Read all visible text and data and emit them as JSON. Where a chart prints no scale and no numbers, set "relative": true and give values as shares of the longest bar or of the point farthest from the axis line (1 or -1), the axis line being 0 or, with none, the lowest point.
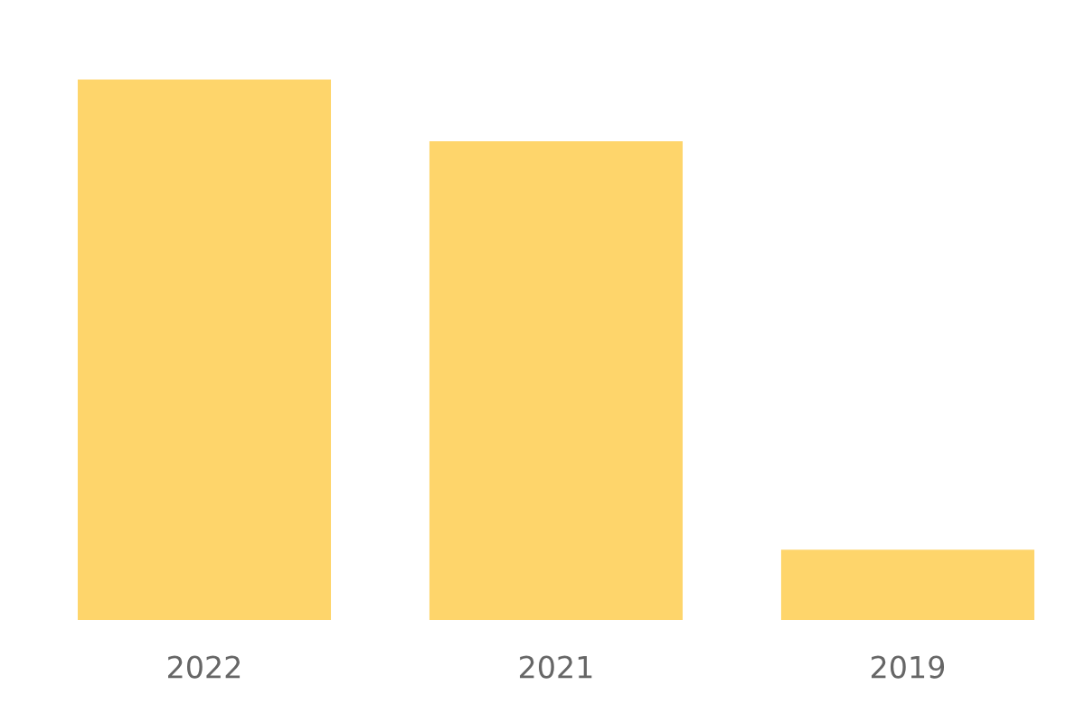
{
  "chart_data": {
    "type": "bar",
    "relative": true,
    "categories": [
      "2022",
      "2021",
      "2019"
    ],
    "values": [
      1,
      0.886,
      0.13
    ],
    "color": "#fed56b",
    "grid": false,
    "legend": false
  }
}
